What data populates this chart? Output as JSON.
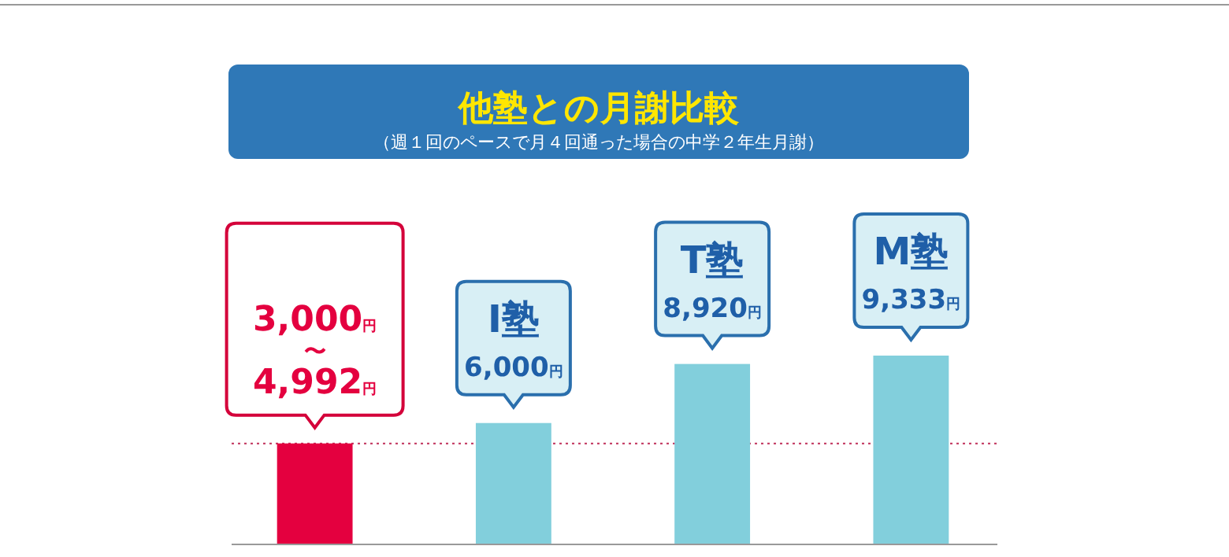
{
  "chart_data": {
    "type": "bar",
    "title": "他塾との月謝比較",
    "subtitle": "（週１回のペースで月４回通った場合の中学２年生月謝）",
    "categories": [
      null,
      "I塾",
      "T塾",
      "M塾"
    ],
    "values": [
      4992,
      6000,
      8920,
      9333
    ],
    "colors": [
      "#e4003f",
      "#82cfdc",
      "#82cfdc",
      "#82cfdc"
    ],
    "value_labels": [
      "3,000円〜4,992円",
      "6,000円",
      "8,920円",
      "9,333円"
    ],
    "ref_lines": [
      {
        "axis": "y",
        "value": 4992,
        "color": "#c0305a",
        "line_style": "dotted"
      }
    ]
  }
}
